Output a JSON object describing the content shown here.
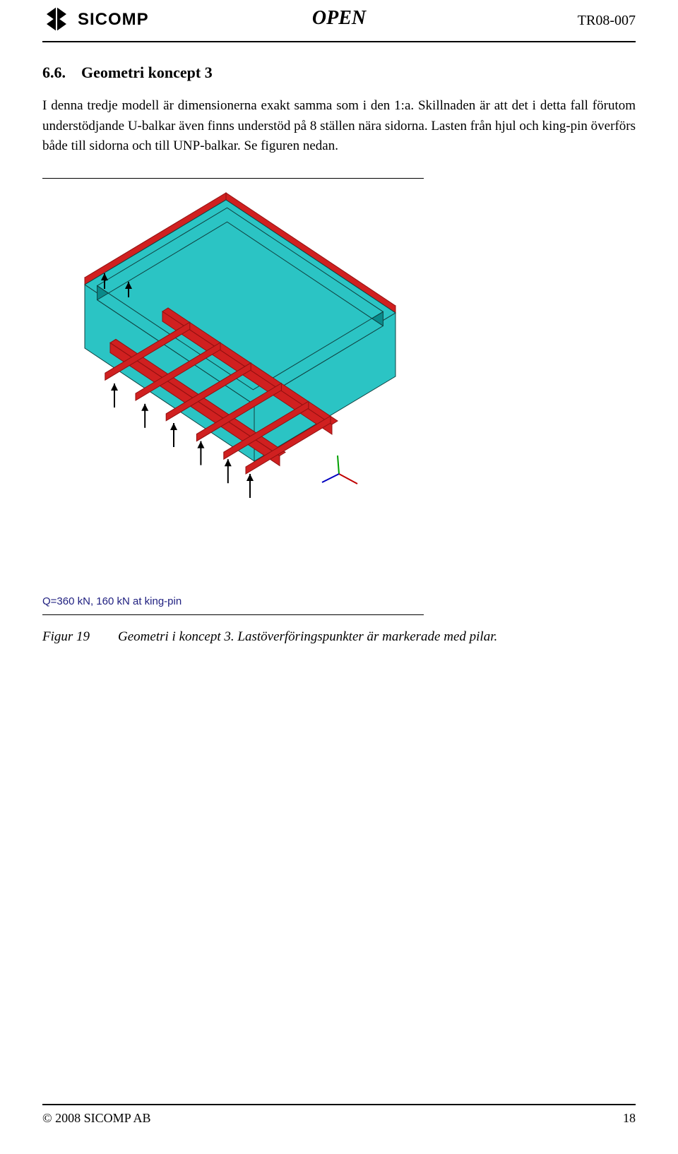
{
  "header": {
    "brand": "SICOMP",
    "center": "OPEN",
    "doc_id": "TR08-007"
  },
  "section": {
    "number": "6.6.",
    "title": "Geometri koncept 3"
  },
  "paragraphs": {
    "p1": "I denna tredje modell är dimensionerna exakt samma som i den 1:a. Skillnaden är att det i detta fall förutom understödjande U-balkar även finns understöd på 8 ställen nära sidorna. Lasten från hjul och king-pin överförs både till sidorna och till UNP-balkar. Se figuren nedan."
  },
  "figure": {
    "load_label": "Q=360 kN, 160 kN at king-pin",
    "caption_num": "Figur 19",
    "caption_text": "Geometri i koncept 3. Lastöverföringspunkter är markerade med pilar.",
    "colors": {
      "body_fill": "#2bc4c4",
      "body_stroke": "#0a8a8a",
      "beam_red": "#d02020",
      "beam_red_dark": "#901010",
      "edge_line": "#104040",
      "arrow": "#000000",
      "axis_x": "#c00000",
      "axis_y": "#00a000",
      "axis_z": "#0000c0"
    }
  },
  "footer": {
    "copyright": "© 2008 SICOMP AB",
    "page": "18"
  }
}
